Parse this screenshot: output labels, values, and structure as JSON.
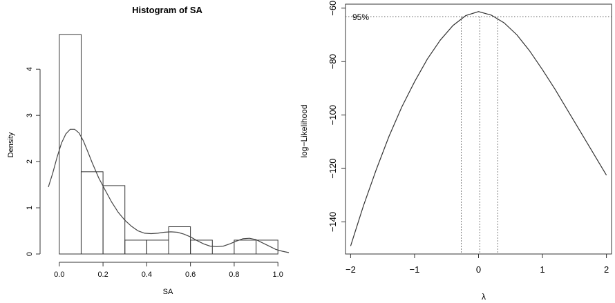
{
  "chart_data": [
    {
      "type": "bar",
      "title": "Histogram of SA",
      "xlabel": "SA",
      "ylabel": "Density",
      "xlim": [
        -0.05,
        1.05
      ],
      "ylim": [
        0,
        4.9
      ],
      "bins": [
        {
          "x0": 0.0,
          "x1": 0.1,
          "density": 4.75
        },
        {
          "x0": 0.1,
          "x1": 0.2,
          "density": 1.78
        },
        {
          "x0": 0.2,
          "x1": 0.3,
          "density": 1.48
        },
        {
          "x0": 0.3,
          "x1": 0.4,
          "density": 0.3
        },
        {
          "x0": 0.4,
          "x1": 0.5,
          "density": 0.3
        },
        {
          "x0": 0.5,
          "x1": 0.6,
          "density": 0.59
        },
        {
          "x0": 0.6,
          "x1": 0.7,
          "density": 0.3
        },
        {
          "x0": 0.7,
          "x1": 0.8,
          "density": 0.0
        },
        {
          "x0": 0.8,
          "x1": 0.9,
          "density": 0.3
        },
        {
          "x0": 0.9,
          "x1": 1.0,
          "density": 0.3
        }
      ],
      "density_curve": {
        "x": [
          -0.05,
          -0.03,
          -0.01,
          0.01,
          0.03,
          0.05,
          0.07,
          0.09,
          0.11,
          0.13,
          0.15,
          0.18,
          0.21,
          0.24,
          0.27,
          0.3,
          0.33,
          0.36,
          0.39,
          0.42,
          0.45,
          0.48,
          0.51,
          0.54,
          0.57,
          0.6,
          0.63,
          0.66,
          0.69,
          0.72,
          0.75,
          0.78,
          0.81,
          0.84,
          0.87,
          0.9,
          0.93,
          0.96,
          0.99,
          1.02,
          1.05
        ],
        "y": [
          1.45,
          1.75,
          2.1,
          2.4,
          2.6,
          2.7,
          2.7,
          2.62,
          2.45,
          2.22,
          1.98,
          1.65,
          1.38,
          1.12,
          0.9,
          0.73,
          0.6,
          0.5,
          0.45,
          0.44,
          0.45,
          0.47,
          0.48,
          0.47,
          0.43,
          0.37,
          0.29,
          0.22,
          0.17,
          0.16,
          0.17,
          0.22,
          0.28,
          0.33,
          0.34,
          0.31,
          0.24,
          0.17,
          0.1,
          0.06,
          0.03
        ]
      },
      "x_ticks": [
        0.0,
        0.2,
        0.4,
        0.6,
        0.8,
        1.0
      ],
      "x_tick_labels": [
        "0.0",
        "0.2",
        "0.4",
        "0.6",
        "0.8",
        "1.0"
      ],
      "y_ticks": [
        0,
        1,
        2,
        3,
        4
      ],
      "y_tick_labels": [
        "0",
        "1",
        "2",
        "3",
        "4"
      ]
    },
    {
      "type": "line",
      "xlabel": "λ",
      "ylabel": "log−Likelihood",
      "xlim": [
        -2.08,
        2.08
      ],
      "ylim": [
        -152,
        -58.5
      ],
      "curve": {
        "x": [
          -2.0,
          -1.8,
          -1.6,
          -1.4,
          -1.2,
          -1.0,
          -0.8,
          -0.6,
          -0.4,
          -0.2,
          0.0,
          0.2,
          0.4,
          0.6,
          0.8,
          1.0,
          1.2,
          1.4,
          1.6,
          1.8,
          2.0
        ],
        "y": [
          -149,
          -134,
          -120.5,
          -108,
          -97,
          -87.5,
          -79,
          -72,
          -66.5,
          -62.8,
          -61.3,
          -62.6,
          -65.5,
          -70,
          -76,
          -83,
          -90.5,
          -98.5,
          -106.5,
          -114.5,
          -122.5
        ]
      },
      "ci_level_y": -63.2,
      "ci_label": "95%",
      "ci_lambda": [
        -0.27,
        0.02,
        0.3
      ],
      "x_ticks": [
        -2,
        -1,
        0,
        1,
        2
      ],
      "x_tick_labels": [
        "−2",
        "−1",
        "0",
        "1",
        "2"
      ],
      "y_ticks": [
        -60,
        -80,
        -100,
        -120,
        -140
      ],
      "y_tick_labels": [
        "−60",
        "−80",
        "−100",
        "−120",
        "−140"
      ]
    }
  ]
}
